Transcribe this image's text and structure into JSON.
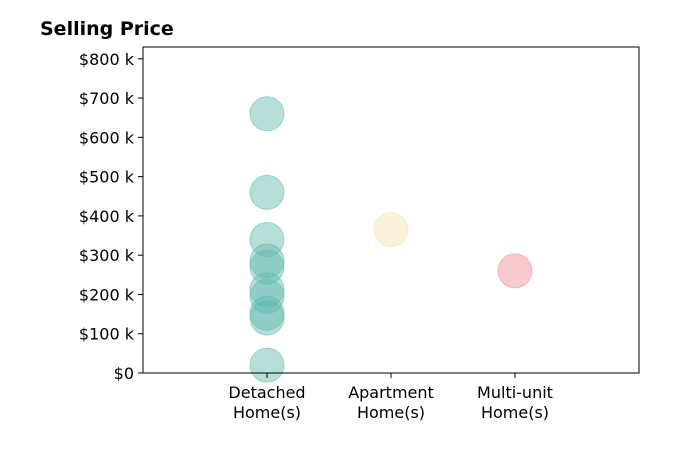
{
  "chart_data": {
    "type": "scatter",
    "title": "Selling Price",
    "xlabel": "",
    "ylabel": "",
    "categories": [
      "Detached\nHome(s)",
      "Apartment\nHome(s)",
      "Multi-unit\nHome(s)"
    ],
    "xlim": [
      -1,
      3
    ],
    "ylim": [
      0,
      830000
    ],
    "yticks": [
      0,
      100000,
      200000,
      300000,
      400000,
      500000,
      600000,
      700000,
      800000
    ],
    "ytick_labels": [
      "$0",
      "$100 k",
      "$200 k",
      "$300 k",
      "$400 k",
      "$500 k",
      "$600 k",
      "$700 k",
      "$800 k"
    ],
    "grid": false,
    "legend": "none",
    "series": [
      {
        "category": "Detached\nHome(s)",
        "color": "#5fb8ad",
        "values": [
          660000,
          460000,
          340000,
          285000,
          270000,
          212000,
          195000,
          152000,
          140000,
          20000
        ]
      },
      {
        "category": "Apartment\nHome(s)",
        "color": "#f5dfa8",
        "values": [
          365000
        ]
      },
      {
        "category": "Multi-unit\nHome(s)",
        "color": "#ef8a92",
        "values": [
          260000
        ]
      }
    ]
  }
}
